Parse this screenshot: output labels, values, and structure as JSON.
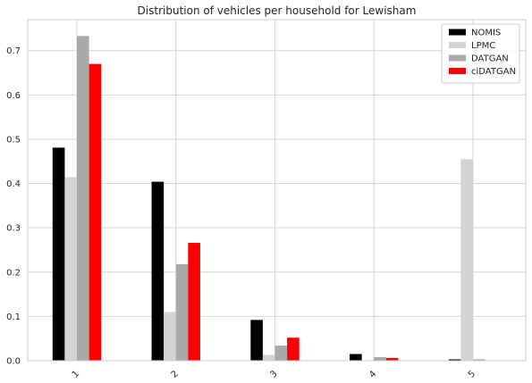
{
  "chart_data": {
    "type": "bar",
    "title": "Distribution of vehicles per household for Lewisham",
    "xlabel": "",
    "ylabel": "",
    "categories": [
      "1",
      "2",
      "3",
      "4",
      "5"
    ],
    "series": [
      {
        "name": "NOMIS",
        "color": "#000000",
        "values": [
          0.481,
          0.404,
          0.092,
          0.015,
          0.003
        ]
      },
      {
        "name": "LPMC",
        "color": "#d3d3d3",
        "values": [
          0.414,
          0.11,
          0.013,
          0.0,
          0.455
        ]
      },
      {
        "name": "DATGAN",
        "color": "#a9a9a9",
        "values": [
          0.733,
          0.218,
          0.034,
          0.008,
          0.003
        ]
      },
      {
        "name": "ciDATGAN",
        "color": "#ff0000",
        "values": [
          0.67,
          0.266,
          0.052,
          0.006,
          0.0
        ]
      }
    ],
    "ylim": [
      0,
      0.77
    ],
    "yticks": [
      "0.0",
      "0.1",
      "0.2",
      "0.3",
      "0.4",
      "0.5",
      "0.6",
      "0.7"
    ],
    "grid": true,
    "legend_position": "top-right",
    "xtick_rotation": 45
  }
}
